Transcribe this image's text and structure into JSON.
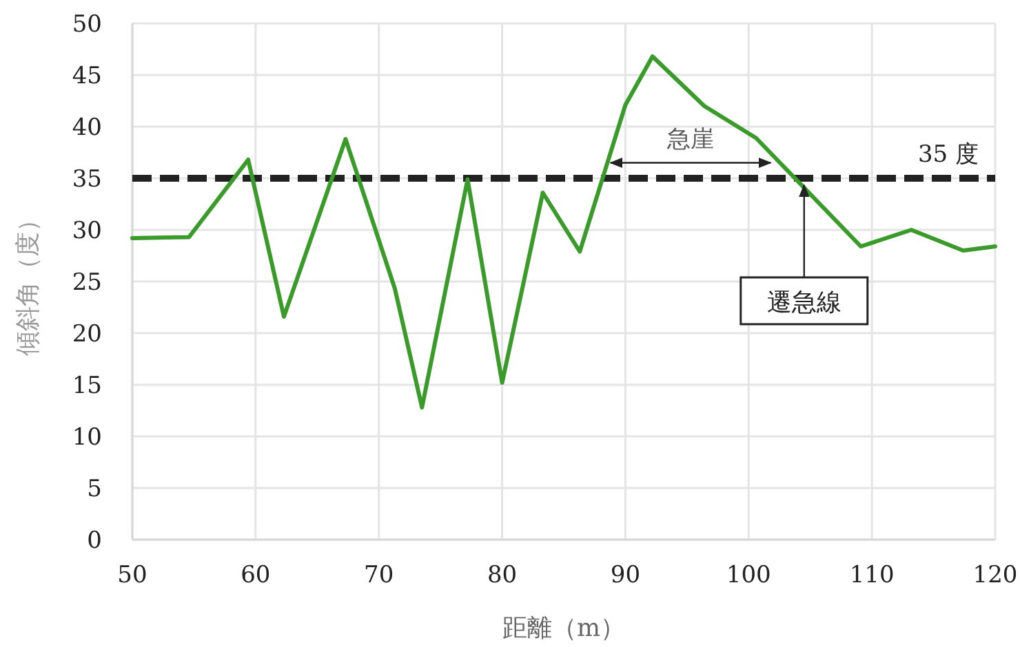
{
  "chart_data": {
    "type": "line",
    "xlabel": "距離（m）",
    "ylabel": "傾斜角（度）",
    "x": [
      50,
      54.6,
      59.4,
      62.3,
      67.3,
      71.3,
      73.5,
      77.2,
      80.0,
      83.3,
      86.3,
      90.0,
      92.2,
      96.4,
      100.6,
      109.1,
      113.2,
      117.4,
      120
    ],
    "series": [
      {
        "color": "#3a9a2a",
        "values": [
          29.2,
          29.3,
          36.8,
          21.6,
          38.8,
          24.3,
          12.8,
          34.9,
          15.2,
          33.6,
          27.9,
          42.1,
          46.8,
          42.0,
          38.9,
          28.4,
          30.0,
          28.0,
          28.4
        ]
      }
    ],
    "xlim": [
      50,
      120
    ],
    "xticks": [
      50,
      60,
      70,
      80,
      90,
      100,
      110,
      120
    ],
    "ylim": [
      0,
      50
    ],
    "yticks": [
      0,
      5,
      10,
      15,
      20,
      25,
      30,
      35,
      40,
      45,
      50
    ],
    "grid": true,
    "marker": "none",
    "line_style": "solid",
    "ref_lines": [
      {
        "axis": "y",
        "value": 35,
        "label": "35 度",
        "color": "#222222",
        "line_style": "dashed"
      }
    ],
    "annotations": [
      "急崖",
      {
        "text": "遷急線",
        "x": 104.5,
        "y": 35
      }
    ]
  }
}
